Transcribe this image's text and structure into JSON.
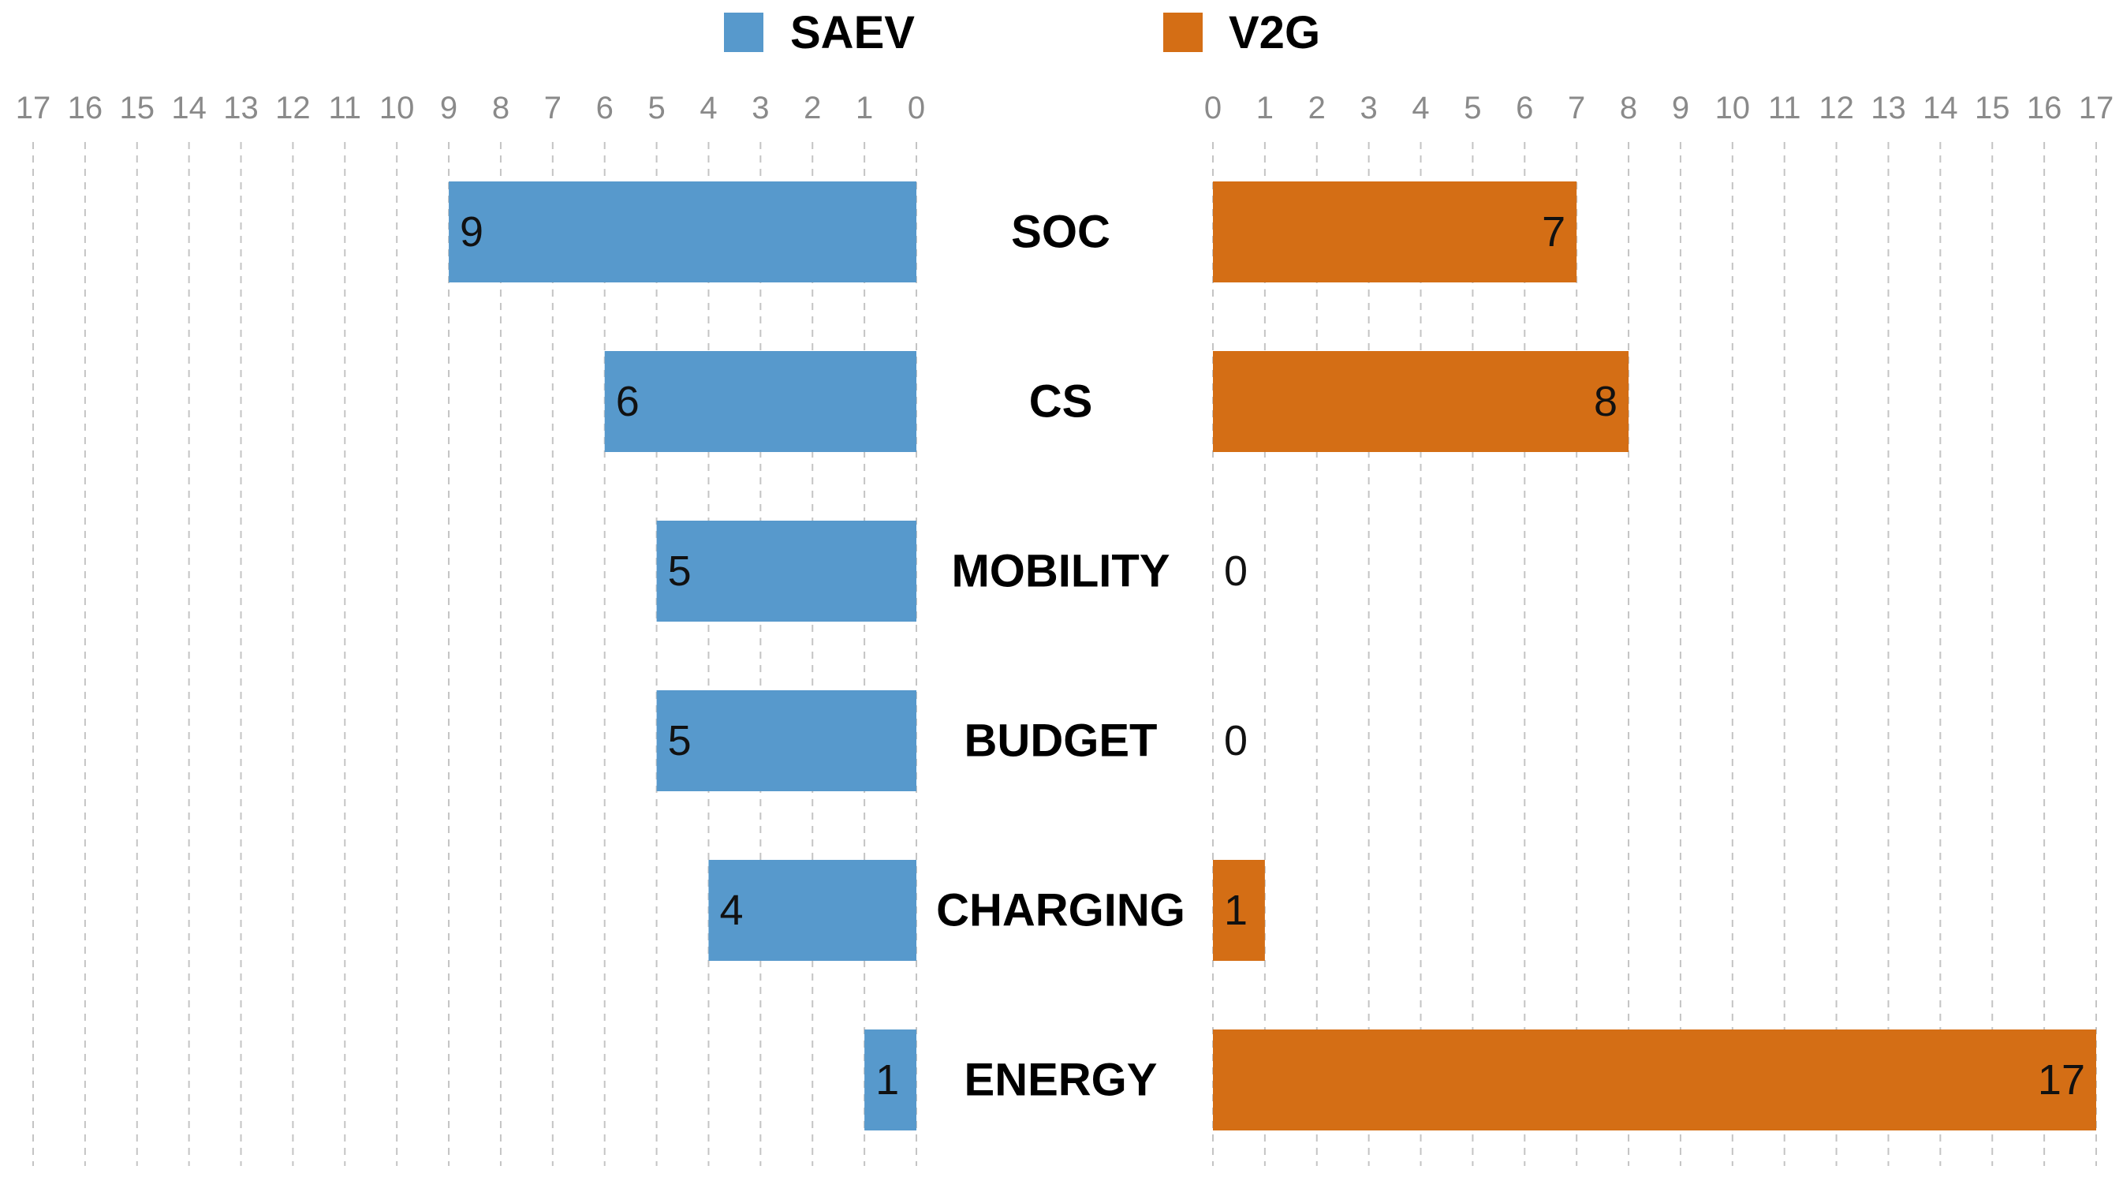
{
  "chart_data": {
    "type": "bar",
    "orientation": "horizontal-diverging",
    "categories": [
      "SOC",
      "CS",
      "MOBILITY",
      "BUDGET",
      "CHARGING",
      "ENERGY"
    ],
    "series": [
      {
        "name": "SAEV",
        "color": "#5799cc",
        "values": [
          9,
          6,
          5,
          5,
          4,
          1
        ]
      },
      {
        "name": "V2G",
        "color": "#d46e15",
        "values": [
          7,
          8,
          0,
          0,
          1,
          17
        ]
      }
    ],
    "xlim": [
      0,
      17
    ],
    "ticks": [
      0,
      1,
      2,
      3,
      4,
      5,
      6,
      7,
      8,
      9,
      10,
      11,
      12,
      13,
      14,
      15,
      16,
      17
    ],
    "grid": true,
    "legend": "top-center",
    "title": "",
    "xlabel": "",
    "ylabel": ""
  }
}
